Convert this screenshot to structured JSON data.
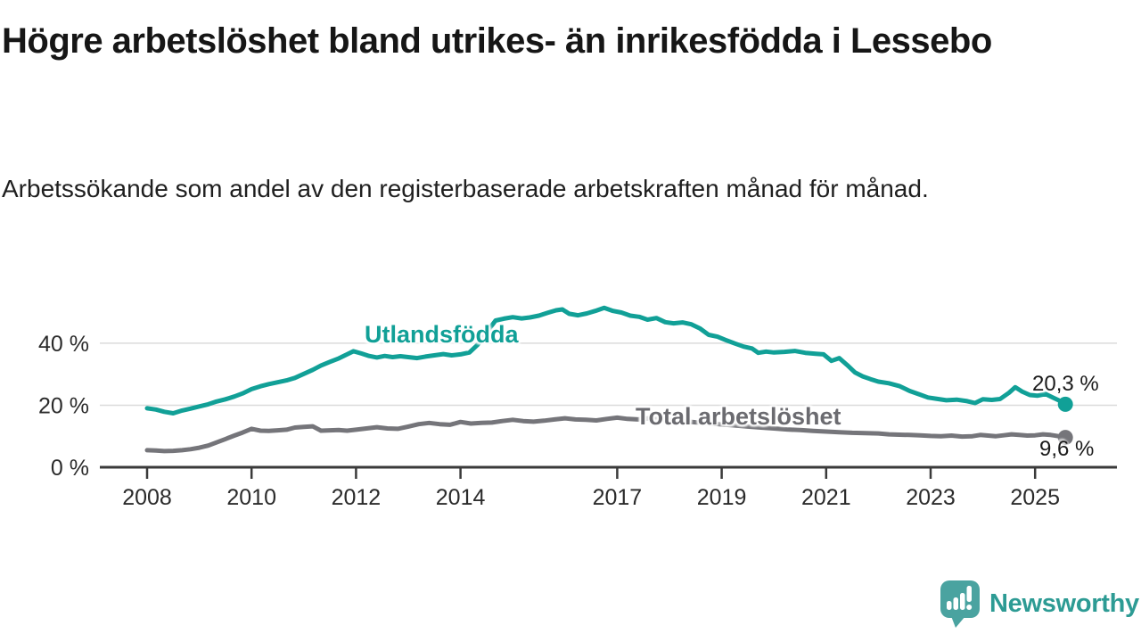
{
  "header": {
    "title": "Högre arbetslöshet bland utrikes- än inrikesfödda i Lessebo",
    "subtitle": "Arbetssökande som andel av den registerbaserade arbetskraften månad för månad."
  },
  "branding": {
    "wordmark": "Newsworthy",
    "icon": "newsworthy-bar-chart-bubble-icon",
    "icon_color": "#4aa3a0",
    "wordmark_color": "#2d9b94"
  },
  "chart_data": {
    "type": "line",
    "title": "Högre arbetslöshet bland utrikes- än inrikesfödda i Lessebo",
    "xlabel": "",
    "ylabel": "",
    "grid": "horizontal",
    "legend_position": "inline-on-lines",
    "xlim": [
      2007.6,
      2026.3
    ],
    "ylim": [
      0,
      52
    ],
    "x_ticks": [
      "2008",
      "2010",
      "2012",
      "2014",
      "2017",
      "2019",
      "2021",
      "2023",
      "2025"
    ],
    "y_ticks": [
      {
        "value": 0,
        "label": "0 %"
      },
      {
        "value": 20,
        "label": "20 %"
      },
      {
        "value": 40,
        "label": "40 %"
      }
    ],
    "colors": {
      "gridline": "#dbdbdb",
      "axis": "#3a3a3a",
      "tick_text": "#2b2b2b"
    },
    "series": [
      {
        "id": "utlandsfodda",
        "label": "Utlandsfödda",
        "color": "#11a097",
        "end_label": "20,3 %",
        "end_value": 20.3,
        "data": [
          [
            2008.0,
            19.0
          ],
          [
            2008.17,
            18.6
          ],
          [
            2008.33,
            17.9
          ],
          [
            2008.5,
            17.4
          ],
          [
            2008.67,
            18.3
          ],
          [
            2008.83,
            18.9
          ],
          [
            2009.0,
            19.6
          ],
          [
            2009.17,
            20.3
          ],
          [
            2009.33,
            21.2
          ],
          [
            2009.5,
            21.9
          ],
          [
            2009.67,
            22.8
          ],
          [
            2009.83,
            23.8
          ],
          [
            2010.0,
            25.2
          ],
          [
            2010.17,
            26.1
          ],
          [
            2010.33,
            26.8
          ],
          [
            2010.5,
            27.4
          ],
          [
            2010.67,
            28.0
          ],
          [
            2010.83,
            28.8
          ],
          [
            2011.0,
            30.1
          ],
          [
            2011.17,
            31.4
          ],
          [
            2011.33,
            32.8
          ],
          [
            2011.5,
            34.0
          ],
          [
            2011.67,
            35.1
          ],
          [
            2011.83,
            36.4
          ],
          [
            2011.95,
            37.4
          ],
          [
            2012.1,
            36.7
          ],
          [
            2012.25,
            35.9
          ],
          [
            2012.4,
            35.4
          ],
          [
            2012.55,
            35.9
          ],
          [
            2012.7,
            35.5
          ],
          [
            2012.85,
            35.8
          ],
          [
            2013.0,
            35.5
          ],
          [
            2013.17,
            35.2
          ],
          [
            2013.33,
            35.7
          ],
          [
            2013.5,
            36.1
          ],
          [
            2013.67,
            36.5
          ],
          [
            2013.83,
            36.1
          ],
          [
            2014.0,
            36.4
          ],
          [
            2014.17,
            37.0
          ],
          [
            2014.33,
            39.5
          ],
          [
            2014.5,
            43.5
          ],
          [
            2014.67,
            47.3
          ],
          [
            2014.83,
            47.9
          ],
          [
            2015.0,
            48.4
          ],
          [
            2015.17,
            48.0
          ],
          [
            2015.33,
            48.3
          ],
          [
            2015.5,
            48.9
          ],
          [
            2015.67,
            49.8
          ],
          [
            2015.83,
            50.6
          ],
          [
            2015.95,
            50.9
          ],
          [
            2016.08,
            49.5
          ],
          [
            2016.25,
            49.0
          ],
          [
            2016.42,
            49.6
          ],
          [
            2016.58,
            50.4
          ],
          [
            2016.75,
            51.4
          ],
          [
            2016.92,
            50.4
          ],
          [
            2017.08,
            49.9
          ],
          [
            2017.25,
            48.9
          ],
          [
            2017.42,
            48.5
          ],
          [
            2017.58,
            47.6
          ],
          [
            2017.75,
            48.1
          ],
          [
            2017.92,
            46.8
          ],
          [
            2018.08,
            46.4
          ],
          [
            2018.25,
            46.7
          ],
          [
            2018.42,
            46.1
          ],
          [
            2018.58,
            44.8
          ],
          [
            2018.75,
            42.7
          ],
          [
            2018.92,
            42.1
          ],
          [
            2019.08,
            41.0
          ],
          [
            2019.25,
            39.9
          ],
          [
            2019.42,
            38.9
          ],
          [
            2019.58,
            38.3
          ],
          [
            2019.7,
            36.9
          ],
          [
            2019.85,
            37.3
          ],
          [
            2020.0,
            37.0
          ],
          [
            2020.2,
            37.2
          ],
          [
            2020.4,
            37.5
          ],
          [
            2020.6,
            36.9
          ],
          [
            2020.8,
            36.6
          ],
          [
            2020.95,
            36.4
          ],
          [
            2021.1,
            34.3
          ],
          [
            2021.25,
            35.2
          ],
          [
            2021.4,
            33.0
          ],
          [
            2021.55,
            30.6
          ],
          [
            2021.7,
            29.3
          ],
          [
            2021.85,
            28.4
          ],
          [
            2022.0,
            27.6
          ],
          [
            2022.2,
            27.1
          ],
          [
            2022.4,
            26.2
          ],
          [
            2022.6,
            24.6
          ],
          [
            2022.8,
            23.4
          ],
          [
            2022.95,
            22.5
          ],
          [
            2023.1,
            22.1
          ],
          [
            2023.3,
            21.6
          ],
          [
            2023.5,
            21.8
          ],
          [
            2023.7,
            21.3
          ],
          [
            2023.85,
            20.7
          ],
          [
            2024.0,
            21.9
          ],
          [
            2024.17,
            21.7
          ],
          [
            2024.33,
            22.0
          ],
          [
            2024.5,
            24.0
          ],
          [
            2024.62,
            25.8
          ],
          [
            2024.75,
            24.4
          ],
          [
            2024.9,
            23.3
          ],
          [
            2025.05,
            23.1
          ],
          [
            2025.2,
            23.6
          ],
          [
            2025.35,
            22.4
          ],
          [
            2025.5,
            21.2
          ],
          [
            2025.58,
            20.3
          ]
        ]
      },
      {
        "id": "total",
        "label": "Total arbetslöshet",
        "color": "#75757a",
        "end_label": "9,6 %",
        "end_value": 9.6,
        "data": [
          [
            2008.0,
            5.5
          ],
          [
            2008.17,
            5.4
          ],
          [
            2008.33,
            5.2
          ],
          [
            2008.5,
            5.3
          ],
          [
            2008.67,
            5.5
          ],
          [
            2008.83,
            5.8
          ],
          [
            2009.0,
            6.3
          ],
          [
            2009.17,
            7.0
          ],
          [
            2009.33,
            8.0
          ],
          [
            2009.5,
            9.1
          ],
          [
            2009.67,
            10.2
          ],
          [
            2009.83,
            11.2
          ],
          [
            2010.0,
            12.4
          ],
          [
            2010.17,
            11.8
          ],
          [
            2010.33,
            11.7
          ],
          [
            2010.5,
            11.9
          ],
          [
            2010.67,
            12.1
          ],
          [
            2010.83,
            12.8
          ],
          [
            2011.0,
            13.0
          ],
          [
            2011.17,
            13.2
          ],
          [
            2011.33,
            11.8
          ],
          [
            2011.5,
            11.9
          ],
          [
            2011.67,
            12.0
          ],
          [
            2011.83,
            11.8
          ],
          [
            2012.0,
            12.1
          ],
          [
            2012.2,
            12.5
          ],
          [
            2012.4,
            12.9
          ],
          [
            2012.6,
            12.5
          ],
          [
            2012.8,
            12.4
          ],
          [
            2013.0,
            13.1
          ],
          [
            2013.2,
            13.9
          ],
          [
            2013.4,
            14.3
          ],
          [
            2013.6,
            13.9
          ],
          [
            2013.8,
            13.7
          ],
          [
            2014.0,
            14.6
          ],
          [
            2014.2,
            14.1
          ],
          [
            2014.4,
            14.3
          ],
          [
            2014.6,
            14.4
          ],
          [
            2014.8,
            14.9
          ],
          [
            2015.0,
            15.3
          ],
          [
            2015.2,
            14.9
          ],
          [
            2015.4,
            14.7
          ],
          [
            2015.6,
            15.0
          ],
          [
            2015.8,
            15.4
          ],
          [
            2016.0,
            15.8
          ],
          [
            2016.2,
            15.4
          ],
          [
            2016.4,
            15.3
          ],
          [
            2016.6,
            15.1
          ],
          [
            2016.8,
            15.6
          ],
          [
            2017.0,
            16.0
          ],
          [
            2017.2,
            15.6
          ],
          [
            2017.4,
            15.4
          ],
          [
            2017.6,
            15.8
          ],
          [
            2017.8,
            15.5
          ],
          [
            2018.0,
            15.2
          ],
          [
            2018.25,
            14.9
          ],
          [
            2018.5,
            14.5
          ],
          [
            2018.75,
            14.2
          ],
          [
            2019.0,
            13.8
          ],
          [
            2019.25,
            13.5
          ],
          [
            2019.5,
            13.1
          ],
          [
            2019.75,
            12.8
          ],
          [
            2020.0,
            12.5
          ],
          [
            2020.25,
            12.2
          ],
          [
            2020.5,
            12.0
          ],
          [
            2020.75,
            11.7
          ],
          [
            2021.0,
            11.5
          ],
          [
            2021.25,
            11.3
          ],
          [
            2021.5,
            11.1
          ],
          [
            2021.75,
            11.0
          ],
          [
            2022.0,
            10.9
          ],
          [
            2022.2,
            10.6
          ],
          [
            2022.4,
            10.5
          ],
          [
            2022.6,
            10.4
          ],
          [
            2022.8,
            10.3
          ],
          [
            2023.0,
            10.1
          ],
          [
            2023.2,
            10.0
          ],
          [
            2023.4,
            10.2
          ],
          [
            2023.6,
            9.9
          ],
          [
            2023.8,
            10.0
          ],
          [
            2023.95,
            10.4
          ],
          [
            2024.1,
            10.2
          ],
          [
            2024.25,
            10.0
          ],
          [
            2024.4,
            10.3
          ],
          [
            2024.55,
            10.6
          ],
          [
            2024.7,
            10.4
          ],
          [
            2024.85,
            10.2
          ],
          [
            2025.0,
            10.3
          ],
          [
            2025.15,
            10.6
          ],
          [
            2025.3,
            10.4
          ],
          [
            2025.45,
            10.0
          ],
          [
            2025.58,
            9.6
          ]
        ]
      }
    ]
  }
}
